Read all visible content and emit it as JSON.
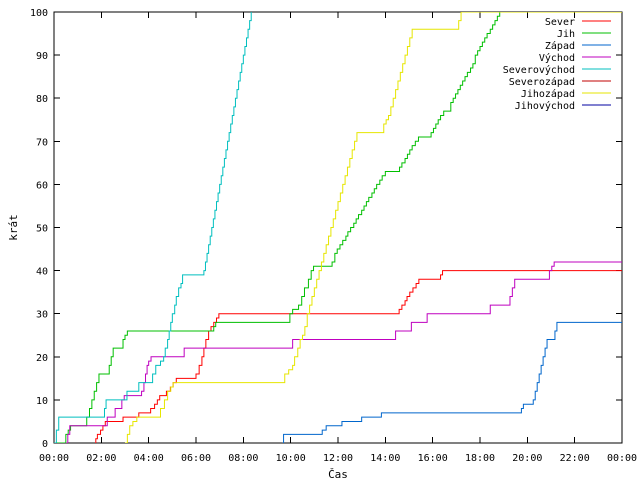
{
  "chart_data": {
    "type": "line",
    "xlabel": "Čas",
    "ylabel": "krát",
    "xlim": [
      0,
      1440
    ],
    "ylim": [
      0,
      100
    ],
    "x_ticks": [
      {
        "value": 0,
        "label": "00:00"
      },
      {
        "value": 120,
        "label": "02:00"
      },
      {
        "value": 240,
        "label": "04:00"
      },
      {
        "value": 360,
        "label": "06:00"
      },
      {
        "value": 480,
        "label": "08:00"
      },
      {
        "value": 600,
        "label": "10:00"
      },
      {
        "value": 720,
        "label": "12:00"
      },
      {
        "value": 840,
        "label": "14:00"
      },
      {
        "value": 960,
        "label": "16:00"
      },
      {
        "value": 1080,
        "label": "18:00"
      },
      {
        "value": 1200,
        "label": "20:00"
      },
      {
        "value": 1320,
        "label": "22:00"
      },
      {
        "value": 1440,
        "label": "00:00"
      }
    ],
    "y_ticks": [
      0,
      10,
      20,
      30,
      40,
      50,
      60,
      70,
      80,
      90,
      100
    ],
    "grid": false,
    "legend_position": "top-right",
    "series": [
      {
        "name": "Sever",
        "color": "#ff0000",
        "points": [
          [
            104,
            0
          ],
          [
            106,
            1
          ],
          [
            110,
            2
          ],
          [
            118,
            3
          ],
          [
            124,
            4
          ],
          [
            130,
            5
          ],
          [
            175,
            6
          ],
          [
            215,
            7
          ],
          [
            245,
            8
          ],
          [
            255,
            9
          ],
          [
            262,
            10
          ],
          [
            268,
            11
          ],
          [
            285,
            12
          ],
          [
            295,
            13
          ],
          [
            302,
            14
          ],
          [
            310,
            15
          ],
          [
            360,
            16
          ],
          [
            368,
            18
          ],
          [
            375,
            20
          ],
          [
            380,
            22
          ],
          [
            385,
            24
          ],
          [
            392,
            26
          ],
          [
            398,
            27
          ],
          [
            405,
            28
          ],
          [
            412,
            29
          ],
          [
            418,
            30
          ],
          [
            870,
            30
          ],
          [
            875,
            31
          ],
          [
            882,
            32
          ],
          [
            890,
            33
          ],
          [
            895,
            34
          ],
          [
            902,
            35
          ],
          [
            910,
            36
          ],
          [
            918,
            37
          ],
          [
            925,
            38
          ],
          [
            975,
            38
          ],
          [
            980,
            39
          ],
          [
            985,
            40
          ],
          [
            1440,
            40
          ]
        ]
      },
      {
        "name": "Jih",
        "color": "#00bf00",
        "points": [
          [
            0,
            0
          ],
          [
            30,
            2
          ],
          [
            36,
            3
          ],
          [
            42,
            4
          ],
          [
            78,
            4
          ],
          [
            83,
            6
          ],
          [
            90,
            8
          ],
          [
            96,
            10
          ],
          [
            102,
            12
          ],
          [
            108,
            14
          ],
          [
            114,
            16
          ],
          [
            135,
            16
          ],
          [
            140,
            18
          ],
          [
            145,
            20
          ],
          [
            150,
            22
          ],
          [
            170,
            22
          ],
          [
            175,
            24
          ],
          [
            180,
            25
          ],
          [
            186,
            26
          ],
          [
            400,
            26
          ],
          [
            405,
            27
          ],
          [
            410,
            28
          ],
          [
            595,
            28
          ],
          [
            598,
            30
          ],
          [
            605,
            31
          ],
          [
            620,
            32
          ],
          [
            628,
            34
          ],
          [
            635,
            36
          ],
          [
            645,
            38
          ],
          [
            652,
            40
          ],
          [
            658,
            41
          ],
          [
            700,
            41
          ],
          [
            705,
            42
          ],
          [
            712,
            44
          ],
          [
            718,
            45
          ],
          [
            725,
            46
          ],
          [
            732,
            47
          ],
          [
            740,
            48
          ],
          [
            745,
            49
          ],
          [
            752,
            50
          ],
          [
            760,
            51
          ],
          [
            766,
            52
          ],
          [
            772,
            53
          ],
          [
            780,
            54
          ],
          [
            786,
            55
          ],
          [
            792,
            56
          ],
          [
            798,
            57
          ],
          [
            806,
            58
          ],
          [
            812,
            59
          ],
          [
            818,
            60
          ],
          [
            826,
            61
          ],
          [
            832,
            62
          ],
          [
            840,
            63
          ],
          [
            870,
            63
          ],
          [
            876,
            64
          ],
          [
            882,
            65
          ],
          [
            890,
            66
          ],
          [
            896,
            67
          ],
          [
            902,
            68
          ],
          [
            908,
            69
          ],
          [
            916,
            70
          ],
          [
            924,
            71
          ],
          [
            950,
            71
          ],
          [
            956,
            72
          ],
          [
            962,
            73
          ],
          [
            968,
            74
          ],
          [
            974,
            75
          ],
          [
            980,
            76
          ],
          [
            988,
            77
          ],
          [
            1000,
            77
          ],
          [
            1006,
            79
          ],
          [
            1012,
            80
          ],
          [
            1018,
            81
          ],
          [
            1024,
            82
          ],
          [
            1030,
            83
          ],
          [
            1036,
            84
          ],
          [
            1042,
            85
          ],
          [
            1048,
            86
          ],
          [
            1056,
            87
          ],
          [
            1062,
            88
          ],
          [
            1068,
            90
          ],
          [
            1074,
            91
          ],
          [
            1080,
            92
          ],
          [
            1086,
            93
          ],
          [
            1092,
            94
          ],
          [
            1098,
            95
          ],
          [
            1106,
            96
          ],
          [
            1112,
            97
          ],
          [
            1118,
            98
          ],
          [
            1124,
            99
          ],
          [
            1130,
            100
          ],
          [
            1440,
            100
          ]
        ]
      },
      {
        "name": "Západ",
        "color": "#0066cc",
        "points": [
          [
            580,
            0
          ],
          [
            582,
            2
          ],
          [
            670,
            2
          ],
          [
            680,
            3
          ],
          [
            690,
            4
          ],
          [
            720,
            4
          ],
          [
            730,
            5
          ],
          [
            770,
            5
          ],
          [
            780,
            6
          ],
          [
            820,
            6
          ],
          [
            830,
            7
          ],
          [
            1180,
            7
          ],
          [
            1185,
            8
          ],
          [
            1190,
            9
          ],
          [
            1210,
            9
          ],
          [
            1215,
            10
          ],
          [
            1220,
            12
          ],
          [
            1225,
            14
          ],
          [
            1230,
            16
          ],
          [
            1235,
            18
          ],
          [
            1240,
            20
          ],
          [
            1245,
            22
          ],
          [
            1250,
            24
          ],
          [
            1265,
            24
          ],
          [
            1270,
            26
          ],
          [
            1275,
            28
          ],
          [
            1440,
            28
          ]
        ]
      },
      {
        "name": "Východ",
        "color": "#bf00bf",
        "points": [
          [
            30,
            0
          ],
          [
            35,
            2
          ],
          [
            40,
            4
          ],
          [
            130,
            4
          ],
          [
            135,
            6
          ],
          [
            150,
            6
          ],
          [
            155,
            8
          ],
          [
            165,
            8
          ],
          [
            172,
            10
          ],
          [
            178,
            11
          ],
          [
            215,
            11
          ],
          [
            222,
            12
          ],
          [
            228,
            14
          ],
          [
            232,
            16
          ],
          [
            236,
            18
          ],
          [
            240,
            19
          ],
          [
            246,
            20
          ],
          [
            320,
            20
          ],
          [
            330,
            22
          ],
          [
            600,
            22
          ],
          [
            605,
            24
          ],
          [
            860,
            24
          ],
          [
            866,
            26
          ],
          [
            900,
            26
          ],
          [
            906,
            28
          ],
          [
            940,
            28
          ],
          [
            946,
            30
          ],
          [
            1100,
            30
          ],
          [
            1106,
            32
          ],
          [
            1150,
            32
          ],
          [
            1156,
            34
          ],
          [
            1162,
            36
          ],
          [
            1168,
            38
          ],
          [
            1250,
            38
          ],
          [
            1256,
            40
          ],
          [
            1262,
            41
          ],
          [
            1268,
            42
          ],
          [
            1440,
            42
          ]
        ]
      },
      {
        "name": "Severovýchod",
        "color": "#00bfbf",
        "points": [
          [
            0,
            0
          ],
          [
            6,
            3
          ],
          [
            12,
            6
          ],
          [
            120,
            6
          ],
          [
            128,
            8
          ],
          [
            132,
            10
          ],
          [
            180,
            10
          ],
          [
            185,
            12
          ],
          [
            210,
            12
          ],
          [
            215,
            14
          ],
          [
            245,
            14
          ],
          [
            250,
            16
          ],
          [
            258,
            18
          ],
          [
            270,
            19
          ],
          [
            278,
            20
          ],
          [
            282,
            22
          ],
          [
            288,
            24
          ],
          [
            292,
            26
          ],
          [
            296,
            28
          ],
          [
            300,
            30
          ],
          [
            306,
            32
          ],
          [
            310,
            34
          ],
          [
            316,
            36
          ],
          [
            322,
            37
          ],
          [
            326,
            39
          ],
          [
            375,
            39
          ],
          [
            380,
            40
          ],
          [
            384,
            42
          ],
          [
            388,
            44
          ],
          [
            392,
            46
          ],
          [
            396,
            48
          ],
          [
            400,
            50
          ],
          [
            404,
            52
          ],
          [
            408,
            54
          ],
          [
            412,
            56
          ],
          [
            416,
            58
          ],
          [
            420,
            60
          ],
          [
            424,
            62
          ],
          [
            428,
            64
          ],
          [
            432,
            66
          ],
          [
            436,
            68
          ],
          [
            440,
            70
          ],
          [
            444,
            72
          ],
          [
            448,
            74
          ],
          [
            452,
            76
          ],
          [
            456,
            78
          ],
          [
            460,
            80
          ],
          [
            464,
            82
          ],
          [
            468,
            84
          ],
          [
            472,
            86
          ],
          [
            476,
            88
          ],
          [
            480,
            90
          ],
          [
            484,
            92
          ],
          [
            488,
            94
          ],
          [
            492,
            96
          ],
          [
            496,
            98
          ],
          [
            500,
            100
          ]
        ]
      },
      {
        "name": "Severozápad",
        "color": "#c00000",
        "points": []
      },
      {
        "name": "Jihozápad",
        "color": "#e6e600",
        "points": [
          [
            180,
            0
          ],
          [
            186,
            2
          ],
          [
            192,
            4
          ],
          [
            200,
            5
          ],
          [
            210,
            6
          ],
          [
            265,
            6
          ],
          [
            270,
            8
          ],
          [
            280,
            10
          ],
          [
            288,
            12
          ],
          [
            296,
            13
          ],
          [
            302,
            14
          ],
          [
            580,
            14
          ],
          [
            585,
            16
          ],
          [
            595,
            17
          ],
          [
            605,
            18
          ],
          [
            610,
            20
          ],
          [
            618,
            22
          ],
          [
            624,
            24
          ],
          [
            630,
            25
          ],
          [
            636,
            27
          ],
          [
            642,
            30
          ],
          [
            648,
            32
          ],
          [
            654,
            34
          ],
          [
            660,
            36
          ],
          [
            666,
            38
          ],
          [
            672,
            40
          ],
          [
            678,
            42
          ],
          [
            684,
            44
          ],
          [
            690,
            46
          ],
          [
            696,
            48
          ],
          [
            702,
            50
          ],
          [
            708,
            52
          ],
          [
            714,
            54
          ],
          [
            720,
            56
          ],
          [
            726,
            58
          ],
          [
            732,
            60
          ],
          [
            738,
            62
          ],
          [
            744,
            64
          ],
          [
            750,
            66
          ],
          [
            756,
            68
          ],
          [
            762,
            70
          ],
          [
            768,
            72
          ],
          [
            830,
            72
          ],
          [
            836,
            74
          ],
          [
            842,
            75
          ],
          [
            848,
            76
          ],
          [
            854,
            78
          ],
          [
            860,
            80
          ],
          [
            866,
            82
          ],
          [
            872,
            84
          ],
          [
            878,
            86
          ],
          [
            884,
            88
          ],
          [
            890,
            90
          ],
          [
            896,
            92
          ],
          [
            902,
            94
          ],
          [
            908,
            96
          ],
          [
            1020,
            96
          ],
          [
            1026,
            98
          ],
          [
            1032,
            100
          ],
          [
            1440,
            100
          ]
        ]
      },
      {
        "name": "Jihovýchod",
        "color": "#0000a0",
        "points": []
      }
    ]
  }
}
